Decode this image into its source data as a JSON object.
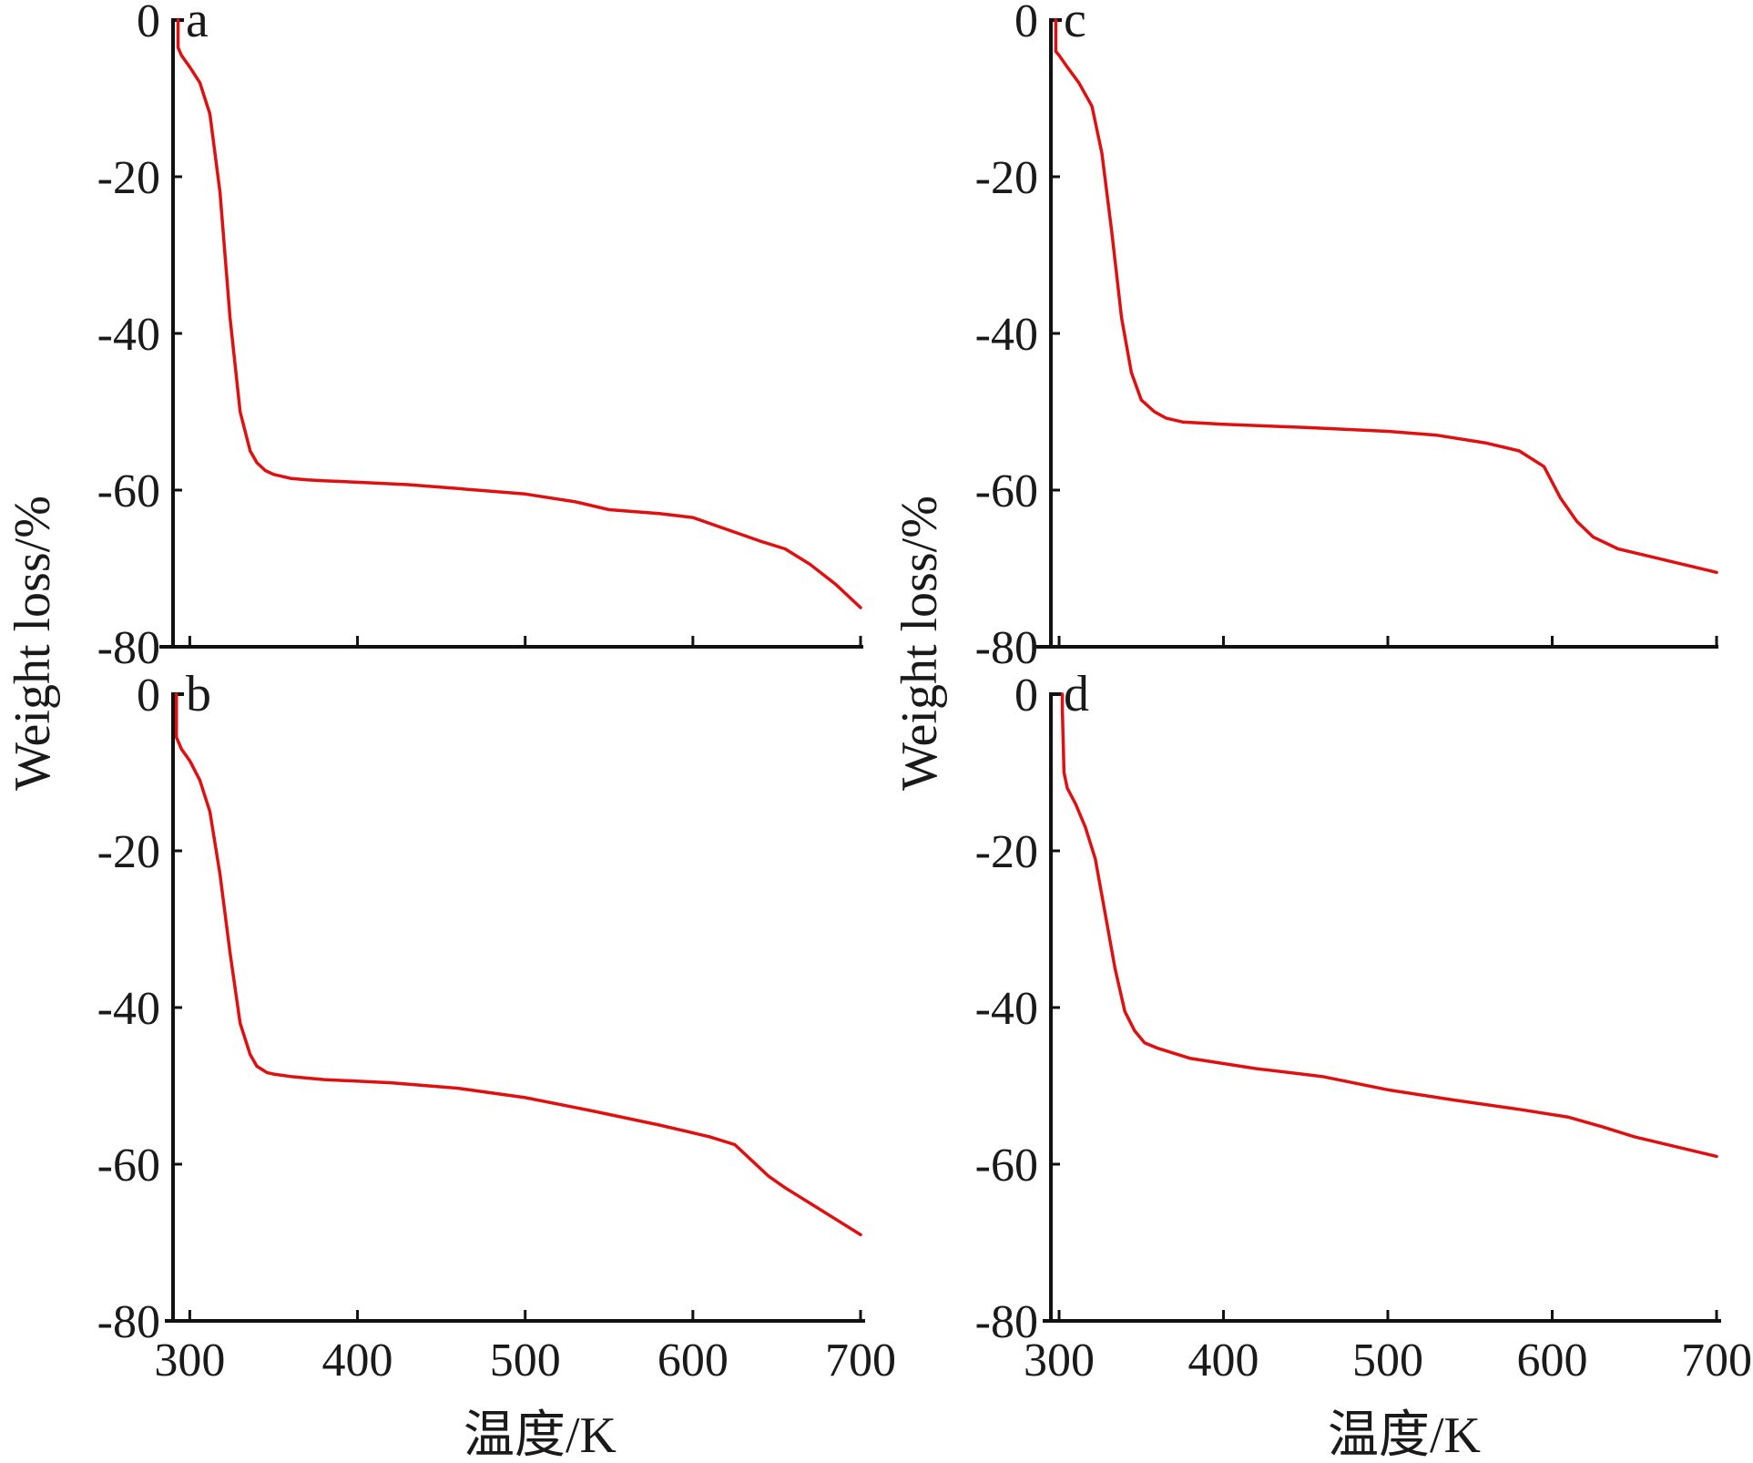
{
  "figure": {
    "ylabel": "Weight loss/%",
    "xlabel": "温度/K",
    "line_color": "#e01010",
    "axis_color": "#111111"
  },
  "chart_data": [
    {
      "type": "line",
      "panel": "a",
      "xlim": [
        290,
        700
      ],
      "ylim": [
        -80,
        0
      ],
      "xticks": [
        300,
        400,
        500,
        600,
        700
      ],
      "yticks": [
        0,
        -20,
        -40,
        -60,
        -80
      ],
      "x_tick_labels": [],
      "y_tick_labels": [
        "0",
        "-20",
        "-40",
        "-60",
        "-80"
      ],
      "series": [
        {
          "x": [
            293,
            293,
            295,
            300,
            306,
            312,
            318,
            324,
            330,
            336,
            340,
            345,
            350,
            360,
            370,
            380,
            400,
            430,
            460,
            500,
            530,
            550,
            580,
            600,
            620,
            640,
            655,
            670,
            685,
            700
          ],
          "y": [
            0,
            -3.5,
            -4.5,
            -6,
            -8,
            -12,
            -22,
            -38,
            -50,
            -55,
            -56.5,
            -57.5,
            -58,
            -58.5,
            -58.7,
            -58.8,
            -59,
            -59.3,
            -59.8,
            -60.5,
            -61.5,
            -62.5,
            -63,
            -63.5,
            -65,
            -66.5,
            -67.5,
            -69.5,
            -72,
            -75
          ]
        }
      ]
    },
    {
      "type": "line",
      "panel": "b",
      "xlim": [
        290,
        700
      ],
      "ylim": [
        -80,
        0
      ],
      "xticks": [
        300,
        400,
        500,
        600,
        700
      ],
      "yticks": [
        0,
        -20,
        -40,
        -60,
        -80
      ],
      "x_tick_labels": [
        "300",
        "400",
        "500",
        "600",
        "700"
      ],
      "y_tick_labels": [
        "0",
        "-20",
        "-40",
        "-60",
        "-80"
      ],
      "series": [
        {
          "x": [
            292,
            292,
            295,
            300,
            306,
            312,
            318,
            324,
            330,
            336,
            340,
            346,
            350,
            360,
            380,
            420,
            460,
            500,
            540,
            580,
            610,
            625,
            635,
            645,
            655,
            670,
            685,
            700
          ],
          "y": [
            0,
            -5.5,
            -7,
            -8.5,
            -11,
            -15,
            -23,
            -33,
            -42,
            -46,
            -47.5,
            -48.3,
            -48.5,
            -48.8,
            -49.2,
            -49.6,
            -50.3,
            -51.5,
            -53.2,
            -55,
            -56.5,
            -57.5,
            -59.5,
            -61.5,
            -63,
            -65,
            -67,
            -69
          ]
        }
      ]
    },
    {
      "type": "line",
      "panel": "c",
      "xlim": [
        295,
        700
      ],
      "ylim": [
        -80,
        0
      ],
      "xticks": [
        300,
        400,
        500,
        600,
        700
      ],
      "yticks": [
        0,
        -20,
        -40,
        -60,
        -80
      ],
      "x_tick_labels": [],
      "y_tick_labels": [
        "0",
        "-20",
        "-40",
        "-60",
        "-80"
      ],
      "series": [
        {
          "x": [
            298,
            298,
            300,
            305,
            312,
            320,
            326,
            332,
            338,
            344,
            350,
            358,
            365,
            375,
            400,
            450,
            500,
            530,
            560,
            580,
            595,
            605,
            615,
            625,
            640,
            660,
            680,
            700
          ],
          "y": [
            0,
            -4,
            -4.5,
            -6,
            -8,
            -11,
            -17,
            -27,
            -38,
            -45,
            -48.5,
            -50,
            -50.8,
            -51.3,
            -51.6,
            -52,
            -52.5,
            -53,
            -54,
            -55,
            -57,
            -61,
            -64,
            -66,
            -67.5,
            -68.5,
            -69.5,
            -70.5
          ]
        }
      ]
    },
    {
      "type": "line",
      "panel": "d",
      "xlim": [
        295,
        700
      ],
      "ylim": [
        -80,
        0
      ],
      "xticks": [
        300,
        400,
        500,
        600,
        700
      ],
      "yticks": [
        0,
        -20,
        -40,
        -60,
        -80
      ],
      "x_tick_labels": [
        "300",
        "400",
        "500",
        "600",
        "700"
      ],
      "y_tick_labels": [
        "0",
        "-20",
        "-40",
        "-60",
        "-80"
      ],
      "series": [
        {
          "x": [
            302,
            302,
            303,
            305,
            310,
            316,
            322,
            328,
            334,
            340,
            346,
            352,
            360,
            380,
            420,
            460,
            500,
            540,
            580,
            610,
            630,
            650,
            680,
            700
          ],
          "y": [
            0,
            -2,
            -10,
            -12,
            -14,
            -17,
            -21,
            -28,
            -35,
            -40.5,
            -43,
            -44.5,
            -45.2,
            -46.5,
            -47.8,
            -48.8,
            -50.5,
            -51.8,
            -53,
            -54,
            -55.2,
            -56.5,
            -58,
            -59
          ]
        }
      ]
    }
  ]
}
